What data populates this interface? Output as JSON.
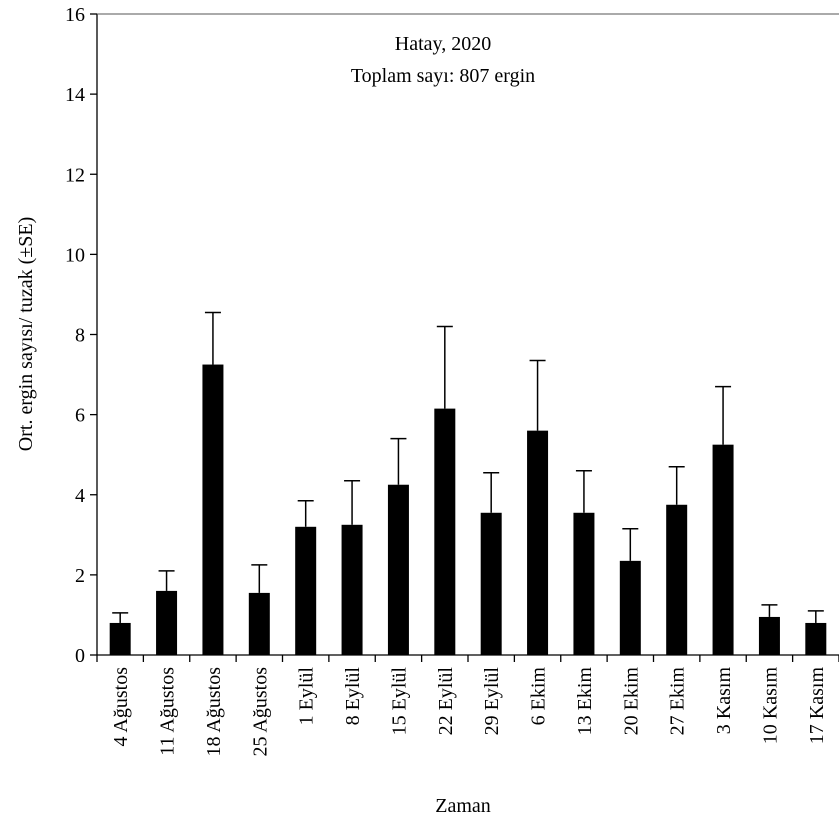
{
  "chart_data": {
    "type": "bar",
    "annotations": [
      "Hatay, 2020",
      "Toplam sayı: 807 ergin"
    ],
    "xlabel": "Zaman",
    "ylabel": "Ort. ergin sayısı/ tuzak (±SE)",
    "ylim": [
      0,
      16
    ],
    "yticks": [
      0,
      2,
      4,
      6,
      8,
      10,
      12,
      14,
      16
    ],
    "categories": [
      "4 Ağustos",
      "11 Ağustos",
      "18 Ağustos",
      "25 Ağustos",
      "1 Eylül",
      "8 Eylül",
      "15 Eylül",
      "22 Eylül",
      "29 Eylül",
      "6 Ekim",
      "13 Ekim",
      "20 Ekim",
      "27 Ekim",
      "3 Kasım",
      "10 Kasım",
      "17 Kasım"
    ],
    "values": [
      0.8,
      1.6,
      7.25,
      1.55,
      3.2,
      3.25,
      4.25,
      6.15,
      3.55,
      5.6,
      3.55,
      2.35,
      3.75,
      5.25,
      0.95,
      0.8
    ],
    "errors": [
      0.25,
      0.5,
      1.3,
      0.7,
      0.65,
      1.1,
      1.15,
      2.05,
      1.0,
      1.75,
      1.05,
      0.8,
      0.95,
      1.45,
      0.3,
      0.3
    ],
    "bar_color": "#000000",
    "grid": false,
    "legend": "none"
  }
}
